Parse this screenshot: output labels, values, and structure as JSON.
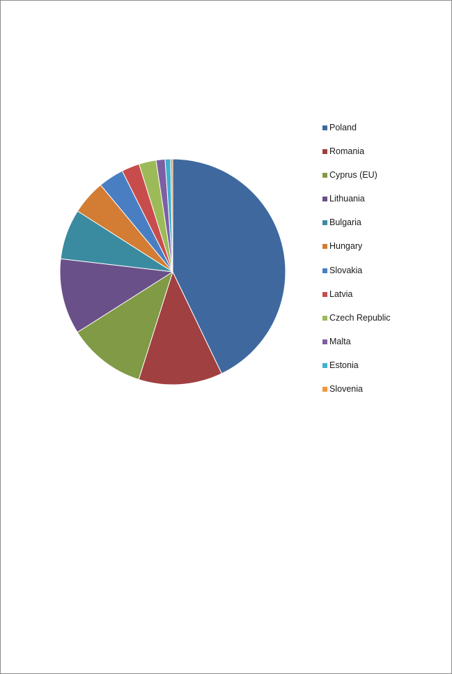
{
  "chart_data": {
    "type": "pie",
    "title": "",
    "legend_position": "right",
    "slices": [
      {
        "label": "Poland",
        "value": 43.5,
        "color": "#3f699e"
      },
      {
        "label": "Romania",
        "value": 12.2,
        "color": "#a04040"
      },
      {
        "label": "Cyprus (EU)",
        "value": 11.3,
        "color": "#809a46"
      },
      {
        "label": "Lithuania",
        "value": 11.0,
        "color": "#6a5088"
      },
      {
        "label": "Bulgaria",
        "value": 7.3,
        "color": "#3a8ba0"
      },
      {
        "label": "Hungary",
        "value": 5.0,
        "color": "#d27c34"
      },
      {
        "label": "Slovakia",
        "value": 3.7,
        "color": "#4a7ec2"
      },
      {
        "label": "Latvia",
        "value": 2.6,
        "color": "#c84c4c"
      },
      {
        "label": "Czech Republic",
        "value": 2.5,
        "color": "#9cbb58"
      },
      {
        "label": "Malta",
        "value": 1.3,
        "color": "#7d5fa3"
      },
      {
        "label": "Estonia",
        "value": 0.8,
        "color": "#41b0cf"
      },
      {
        "label": "Slovenia",
        "value": 0.3,
        "color": "#f4953f"
      }
    ]
  }
}
